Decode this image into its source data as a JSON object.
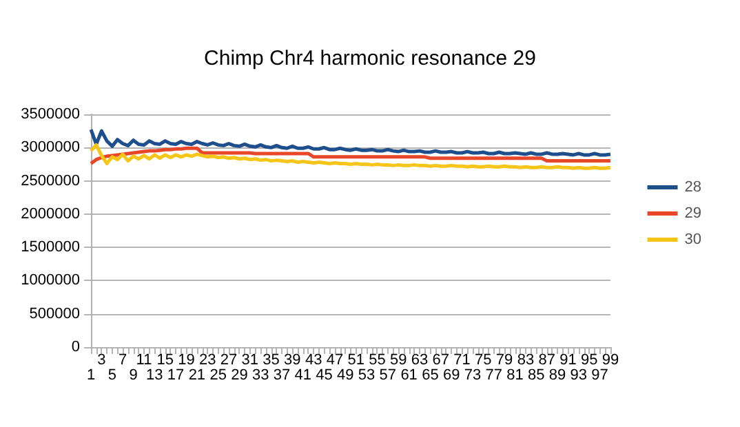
{
  "chart_data": {
    "type": "line",
    "title": "Chimp Chr4 harmonic resonance 29",
    "categories": [
      "1",
      null,
      "3",
      null,
      "5",
      null,
      "7",
      null,
      "9",
      null,
      "11",
      null,
      "13",
      null,
      "15",
      null,
      "17",
      null,
      "19",
      null,
      "21",
      null,
      "23",
      null,
      "25",
      null,
      "27",
      null,
      "29",
      null,
      "31",
      null,
      "33",
      null,
      "35",
      null,
      "37",
      null,
      "39",
      null,
      "41",
      null,
      "43",
      null,
      "45",
      null,
      "47",
      null,
      "49",
      null,
      "51",
      null,
      "53",
      null,
      "55",
      null,
      "57",
      null,
      "59",
      null,
      "61",
      null,
      "63",
      null,
      "65",
      null,
      "67",
      null,
      "69",
      null,
      "71",
      null,
      "73",
      null,
      "75",
      null,
      "77",
      null,
      "79",
      null,
      "81",
      null,
      "83",
      null,
      "85",
      null,
      "87",
      null,
      "89",
      null,
      "91",
      null,
      "93",
      null,
      "95",
      null,
      "97",
      null,
      "99"
    ],
    "series": [
      {
        "name": "28",
        "color": "#1f4e8c",
        "values": [
          3270000,
          3050000,
          3250000,
          3100000,
          3020000,
          3120000,
          3060000,
          3030000,
          3110000,
          3050000,
          3040000,
          3100000,
          3060000,
          3050000,
          3100000,
          3060000,
          3050000,
          3090000,
          3060000,
          3050000,
          3090000,
          3060000,
          3040000,
          3070000,
          3040000,
          3030000,
          3060000,
          3030000,
          3020000,
          3050000,
          3020000,
          3010000,
          3040000,
          3010000,
          3000000,
          3030000,
          3000000,
          2990000,
          3020000,
          2990000,
          2990000,
          3010000,
          2980000,
          2980000,
          3000000,
          2970000,
          2970000,
          2990000,
          2970000,
          2960000,
          2980000,
          2960000,
          2960000,
          2970000,
          2950000,
          2950000,
          2970000,
          2950000,
          2940000,
          2960000,
          2940000,
          2940000,
          2950000,
          2930000,
          2930000,
          2950000,
          2930000,
          2930000,
          2940000,
          2920000,
          2920000,
          2940000,
          2920000,
          2920000,
          2930000,
          2910000,
          2910000,
          2930000,
          2910000,
          2910000,
          2920000,
          2910000,
          2900000,
          2920000,
          2900000,
          2900000,
          2920000,
          2900000,
          2900000,
          2910000,
          2900000,
          2890000,
          2910000,
          2890000,
          2890000,
          2910000,
          2890000,
          2890000,
          2900000
        ]
      },
      {
        "name": "29",
        "color": "#e8472a",
        "values": [
          2760000,
          2820000,
          2850000,
          2870000,
          2880000,
          2890000,
          2900000,
          2910000,
          2920000,
          2930000,
          2940000,
          2950000,
          2950000,
          2960000,
          2970000,
          2970000,
          2980000,
          2980000,
          2990000,
          2990000,
          2990000,
          2920000,
          2920000,
          2920000,
          2920000,
          2920000,
          2920000,
          2920000,
          2920000,
          2920000,
          2920000,
          2910000,
          2910000,
          2910000,
          2910000,
          2910000,
          2910000,
          2910000,
          2910000,
          2910000,
          2910000,
          2910000,
          2860000,
          2860000,
          2860000,
          2860000,
          2860000,
          2860000,
          2860000,
          2860000,
          2860000,
          2860000,
          2860000,
          2860000,
          2860000,
          2860000,
          2860000,
          2860000,
          2860000,
          2860000,
          2860000,
          2860000,
          2860000,
          2860000,
          2840000,
          2840000,
          2840000,
          2840000,
          2840000,
          2840000,
          2840000,
          2840000,
          2840000,
          2840000,
          2840000,
          2840000,
          2840000,
          2840000,
          2840000,
          2840000,
          2840000,
          2840000,
          2840000,
          2840000,
          2840000,
          2840000,
          2800000,
          2800000,
          2800000,
          2800000,
          2800000,
          2800000,
          2800000,
          2800000,
          2800000,
          2800000,
          2800000,
          2800000,
          2800000
        ]
      },
      {
        "name": "30",
        "color": "#f5c518",
        "values": [
          2950000,
          3040000,
          2880000,
          2760000,
          2860000,
          2820000,
          2900000,
          2800000,
          2870000,
          2830000,
          2880000,
          2830000,
          2890000,
          2840000,
          2890000,
          2850000,
          2890000,
          2860000,
          2890000,
          2870000,
          2900000,
          2880000,
          2860000,
          2870000,
          2850000,
          2860000,
          2840000,
          2850000,
          2830000,
          2840000,
          2820000,
          2830000,
          2810000,
          2820000,
          2800000,
          2810000,
          2800000,
          2790000,
          2800000,
          2780000,
          2790000,
          2780000,
          2770000,
          2780000,
          2770000,
          2760000,
          2770000,
          2760000,
          2760000,
          2750000,
          2760000,
          2750000,
          2750000,
          2740000,
          2750000,
          2740000,
          2740000,
          2730000,
          2740000,
          2730000,
          2730000,
          2740000,
          2730000,
          2730000,
          2720000,
          2730000,
          2720000,
          2720000,
          2730000,
          2720000,
          2720000,
          2710000,
          2720000,
          2710000,
          2710000,
          2720000,
          2710000,
          2710000,
          2720000,
          2710000,
          2710000,
          2700000,
          2710000,
          2700000,
          2700000,
          2710000,
          2700000,
          2700000,
          2710000,
          2700000,
          2700000,
          2690000,
          2700000,
          2690000,
          2690000,
          2700000,
          2690000,
          2690000,
          2700000
        ]
      }
    ],
    "ylim": [
      0,
      3500000
    ],
    "yticks": [
      0,
      500000,
      1000000,
      1500000,
      2000000,
      2500000,
      3000000,
      3500000
    ],
    "grid": "y",
    "legend": "right",
    "marker": "none"
  }
}
